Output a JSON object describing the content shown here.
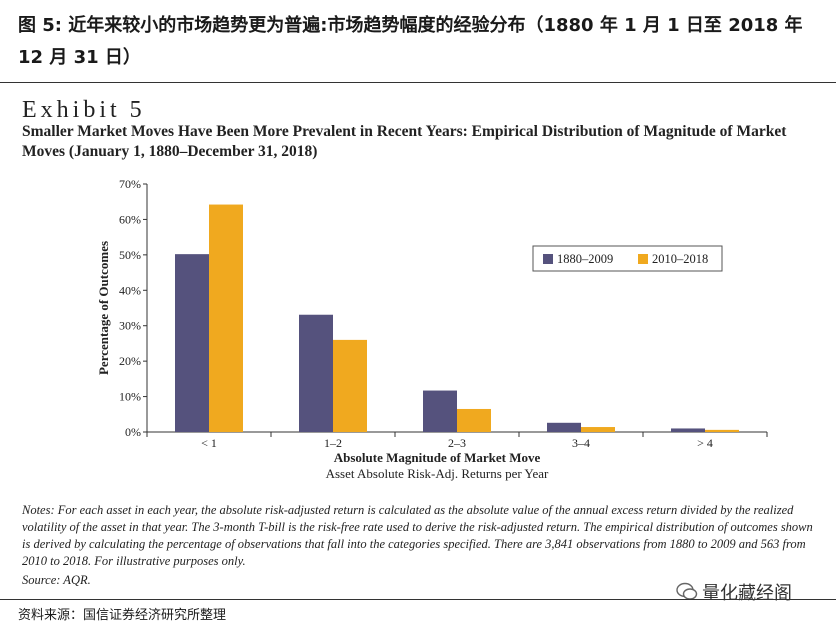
{
  "figure_title": "图 5: 近年来较小的市场趋势更为普遍:市场趋势幅度的经验分布（1880 年 1 月 1 日至 2018 年 12 月 31 日）",
  "exhibit": {
    "word": "Exhibit",
    "number": "5"
  },
  "subtitle": "Smaller Market Moves Have Been More Prevalent in Recent Years: Empirical Distribution of Magnitude of Market Moves (January 1, 1880–December 31, 2018)",
  "chart_data": {
    "type": "bar",
    "title": "",
    "categories": [
      "< 1",
      "1–2",
      "2–3",
      "3–4",
      "> 4"
    ],
    "series": [
      {
        "name": "1880–2009",
        "color": "#55527d",
        "values": [
          50.2,
          33.1,
          11.7,
          2.6,
          1.0
        ]
      },
      {
        "name": "2010–2018",
        "color": "#f0a91f",
        "values": [
          64.2,
          26.0,
          6.5,
          1.4,
          0.6
        ]
      }
    ],
    "xlabel": "Absolute Magnitude of Market Move",
    "xlabel_sub": "Asset Absolute Risk-Adj. Returns per Year",
    "ylabel": "Percentage of Outcomes",
    "ylim": [
      0,
      70
    ],
    "yticks": [
      "0%",
      "10%",
      "20%",
      "30%",
      "40%",
      "50%",
      "60%",
      "70%"
    ],
    "legend_position": "top-right",
    "grid": false
  },
  "notes": "Notes: For each asset in each year, the absolute risk-adjusted return is calculated as the absolute value of the annual excess return divided by the realized volatility of the asset in that year. The 3-month T-bill is the risk-free rate used to derive the risk-adjusted return. The empirical distribution of outcomes shown is derived by calculating the percentage of observations that fall into the categories specified. There are 3,841 observations from 1880 to 2009 and 563 from 2010 to 2018. For illustrative purposes only.",
  "source": "Source: AQR.",
  "watermark": "量化藏经阁",
  "footer": "资料来源：国信证券经济研究所整理"
}
